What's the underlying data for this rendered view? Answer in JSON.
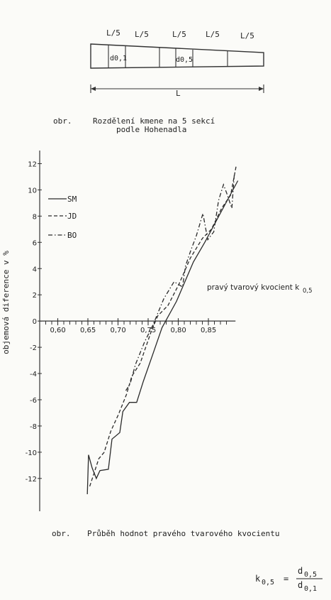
{
  "stem_figure": {
    "section_labels": [
      "L/5",
      "L/5",
      "L/5",
      "L/5",
      "L/5"
    ],
    "d01_label": "d0,1",
    "d05_label": "d0,5",
    "length_label": "L"
  },
  "caption1": {
    "prefix": "obr.",
    "line1": "Rozdělení kmene na 5 sekcí",
    "line2": "podle Hohenadla"
  },
  "caption2": {
    "prefix": "obr.",
    "text": "Průběh hodnot pravého tvarového kvocientu"
  },
  "formula": {
    "lhs_main": "k",
    "lhs_sub": "0,5",
    "equals": "=",
    "num_main": "d",
    "num_sub": "0,5",
    "den_main": "d",
    "den_sub": "0,1"
  },
  "chart_data": {
    "type": "line",
    "ylabel": "objemová diference v %",
    "annotation": {
      "text": "pravý tvarový kvocient k",
      "sub": "0,5"
    },
    "x_ticks": [
      "0,60",
      "0,65",
      "0,70",
      "0,75",
      "0,80",
      "0,85"
    ],
    "y_ticks": [
      "12",
      "10",
      "8",
      "6",
      "4",
      "2",
      "0",
      "-2",
      "-4",
      "-6",
      "-8",
      "-10",
      "-12"
    ],
    "xlim": [
      0.57,
      0.91
    ],
    "ylim": [
      -14.5,
      13
    ],
    "legend_position": "top-left",
    "series": [
      {
        "name": "SM",
        "style": "solid",
        "x": [
          0.649,
          0.651,
          0.657,
          0.664,
          0.67,
          0.684,
          0.69,
          0.703,
          0.708,
          0.719,
          0.731,
          0.742,
          0.758,
          0.773,
          0.797,
          0.825,
          0.844,
          0.872,
          0.899
        ],
        "y": [
          -13.2,
          -10.2,
          -11.2,
          -12.0,
          -11.4,
          -11.3,
          -9.0,
          -8.5,
          -6.9,
          -6.2,
          -6.2,
          -4.6,
          -2.5,
          -0.5,
          1.5,
          4.5,
          6.0,
          8.4,
          10.7
        ]
      },
      {
        "name": "JD",
        "style": "dashed",
        "x": [
          0.653,
          0.663,
          0.668,
          0.677,
          0.688,
          0.701,
          0.714,
          0.723,
          0.737,
          0.755,
          0.766,
          0.783,
          0.801,
          0.82,
          0.84,
          0.855,
          0.872,
          0.887,
          0.896
        ],
        "y": [
          -12.6,
          -11.2,
          -10.5,
          -10.0,
          -8.4,
          -7.1,
          -5.6,
          -4.2,
          -3.2,
          -0.8,
          0.4,
          1.2,
          2.8,
          4.8,
          6.3,
          7.0,
          8.6,
          9.6,
          11.8
        ]
      },
      {
        "name": "BO",
        "style": "dashdot",
        "x": [
          0.713,
          0.72,
          0.729,
          0.744,
          0.758,
          0.776,
          0.793,
          0.807,
          0.812,
          0.821,
          0.83,
          0.841,
          0.849,
          0.859,
          0.867,
          0.875,
          0.88,
          0.889,
          0.893
        ],
        "y": [
          -5.3,
          -4.8,
          -3.3,
          -1.6,
          -0.3,
          1.7,
          3.0,
          2.6,
          4.2,
          5.4,
          6.5,
          8.2,
          6.2,
          6.8,
          9.2,
          10.4,
          9.8,
          8.6,
          11.2
        ]
      }
    ]
  }
}
